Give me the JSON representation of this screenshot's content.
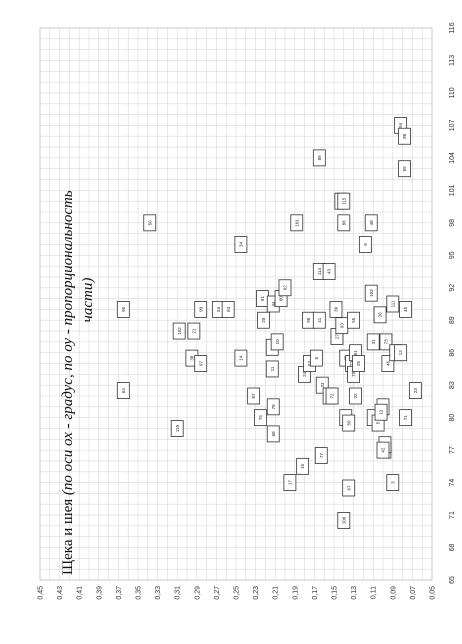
{
  "chart_data": {
    "type": "scatter",
    "title": "Щека и шея",
    "title_italic": "(по оси ох - градус, по оу - пропорциональность части)",
    "x_axis": {
      "range": [
        65,
        116
      ],
      "ticks": [
        65,
        68,
        71,
        74,
        77,
        80,
        83,
        86,
        89,
        92,
        95,
        98,
        101,
        104,
        107,
        110,
        113,
        116
      ]
    },
    "y_axis": {
      "range": [
        0.05,
        0.45
      ],
      "ticks": [
        "0,45",
        "0,43",
        "0,41",
        "0,39",
        "0,37",
        "0,35",
        "0,33",
        "0,31",
        "0,29",
        "0,27",
        "0,25",
        "0,23",
        "0,21",
        "0,19",
        "0,17",
        "0,15",
        "0,13",
        "0,11",
        "0,09",
        "0,07",
        "0,05"
      ],
      "tick_values": [
        0.45,
        0.43,
        0.41,
        0.39,
        0.37,
        0.35,
        0.33,
        0.31,
        0.29,
        0.27,
        0.25,
        0.23,
        0.21,
        0.19,
        0.17,
        0.15,
        0.13,
        0.11,
        0.09,
        0.07,
        0.05
      ]
    },
    "grid": true,
    "orientation": "rotated-90-clockwise",
    "points": [
      {
        "label": "64",
        "x": 82.5,
        "y": 0.365
      },
      {
        "label": "95",
        "x": 90.0,
        "y": 0.365
      },
      {
        "label": "56",
        "x": 98.0,
        "y": 0.338
      },
      {
        "label": "110",
        "x": 79.0,
        "y": 0.31
      },
      {
        "label": "102",
        "x": 88.0,
        "y": 0.308
      },
      {
        "label": "38",
        "x": 85.5,
        "y": 0.295
      },
      {
        "label": "21",
        "x": 88.0,
        "y": 0.293
      },
      {
        "label": "97",
        "x": 85.0,
        "y": 0.286
      },
      {
        "label": "90",
        "x": 90.0,
        "y": 0.286
      },
      {
        "label": "54",
        "x": 90.0,
        "y": 0.268
      },
      {
        "label": "84",
        "x": 90.0,
        "y": 0.258
      },
      {
        "label": "34",
        "x": 96.0,
        "y": 0.245
      },
      {
        "label": "14",
        "x": 85.5,
        "y": 0.245
      },
      {
        "label": "87",
        "x": 82.0,
        "y": 0.232
      },
      {
        "label": "75",
        "x": 80.0,
        "y": 0.225
      },
      {
        "label": "91",
        "x": 91.0,
        "y": 0.223
      },
      {
        "label": "20",
        "x": 89.0,
        "y": 0.222
      },
      {
        "label": "78",
        "x": 81.0,
        "y": 0.212
      },
      {
        "label": "68",
        "x": 78.5,
        "y": 0.212
      },
      {
        "label": "11",
        "x": 84.5,
        "y": 0.213
      },
      {
        "label": "22",
        "x": 86.5,
        "y": 0.213
      },
      {
        "label": "10",
        "x": 87.0,
        "y": 0.208
      },
      {
        "label": "17",
        "x": 74.0,
        "y": 0.195
      },
      {
        "label": "101",
        "x": 98.0,
        "y": 0.188
      },
      {
        "label": "44",
        "x": 90.5,
        "y": 0.212
      },
      {
        "label": "60",
        "x": 91.0,
        "y": 0.204
      },
      {
        "label": "62",
        "x": 92.0,
        "y": 0.2
      },
      {
        "label": "15",
        "x": 75.5,
        "y": 0.182
      },
      {
        "label": "24",
        "x": 84.0,
        "y": 0.18
      },
      {
        "label": "53",
        "x": 85.0,
        "y": 0.175
      },
      {
        "label": "96",
        "x": 89.0,
        "y": 0.176
      },
      {
        "label": "6",
        "x": 85.5,
        "y": 0.168
      },
      {
        "label": "41",
        "x": 89.0,
        "y": 0.165
      },
      {
        "label": "89",
        "x": 104.0,
        "y": 0.165
      },
      {
        "label": "114",
        "x": 93.5,
        "y": 0.165
      },
      {
        "label": "43",
        "x": 93.5,
        "y": 0.155
      },
      {
        "label": "77",
        "x": 76.5,
        "y": 0.163
      },
      {
        "label": "33",
        "x": 83.0,
        "y": 0.162
      },
      {
        "label": "19",
        "x": 82.0,
        "y": 0.155
      },
      {
        "label": "72",
        "x": 82.0,
        "y": 0.152
      },
      {
        "label": "36",
        "x": 90.0,
        "y": 0.148
      },
      {
        "label": "27",
        "x": 87.5,
        "y": 0.147
      },
      {
        "label": "30",
        "x": 100.0,
        "y": 0.143
      },
      {
        "label": "115",
        "x": 100.0,
        "y": 0.14
      },
      {
        "label": "88",
        "x": 98.0,
        "y": 0.14
      },
      {
        "label": "67",
        "x": 73.5,
        "y": 0.135
      },
      {
        "label": "109",
        "x": 70.5,
        "y": 0.14
      },
      {
        "label": "40",
        "x": 80.0,
        "y": 0.138
      },
      {
        "label": "50",
        "x": 79.5,
        "y": 0.135
      },
      {
        "label": "85",
        "x": 85.5,
        "y": 0.138
      },
      {
        "label": "93",
        "x": 88.5,
        "y": 0.142
      },
      {
        "label": "23",
        "x": 85.0,
        "y": 0.132
      },
      {
        "label": "32",
        "x": 82.0,
        "y": 0.128
      },
      {
        "label": "70",
        "x": 84.0,
        "y": 0.13
      },
      {
        "label": "55",
        "x": 89.0,
        "y": 0.13
      },
      {
        "label": "61",
        "x": 86.0,
        "y": 0.128
      },
      {
        "label": "25",
        "x": 85.0,
        "y": 0.125
      },
      {
        "label": "8",
        "x": 96.0,
        "y": 0.118
      },
      {
        "label": "48",
        "x": 98.0,
        "y": 0.112
      },
      {
        "label": "103",
        "x": 91.5,
        "y": 0.112
      },
      {
        "label": "31",
        "x": 87.0,
        "y": 0.11
      },
      {
        "label": "59",
        "x": 80.0,
        "y": 0.11
      },
      {
        "label": "5",
        "x": 79.5,
        "y": 0.105
      },
      {
        "label": "26",
        "x": 89.5,
        "y": 0.103
      },
      {
        "label": "73",
        "x": 87.0,
        "y": 0.097
      },
      {
        "label": "46",
        "x": 85.0,
        "y": 0.095
      },
      {
        "label": "57",
        "x": 81.0,
        "y": 0.1
      },
      {
        "label": "65",
        "x": 77.0,
        "y": 0.098
      },
      {
        "label": "81",
        "x": 77.5,
        "y": 0.098
      },
      {
        "label": "42",
        "x": 77.0,
        "y": 0.1
      },
      {
        "label": "12",
        "x": 80.5,
        "y": 0.102
      },
      {
        "label": "111",
        "x": 90.5,
        "y": 0.09
      },
      {
        "label": "16",
        "x": 86.0,
        "y": 0.087
      },
      {
        "label": "13",
        "x": 86.0,
        "y": 0.082
      },
      {
        "label": "3",
        "x": 74.0,
        "y": 0.09
      },
      {
        "label": "71",
        "x": 80.0,
        "y": 0.077
      },
      {
        "label": "45",
        "x": 90.0,
        "y": 0.077
      },
      {
        "label": "23b",
        "display": "23",
        "x": 82.5,
        "y": 0.067
      },
      {
        "label": "55b",
        "display": "55",
        "x": 103.0,
        "y": 0.078
      },
      {
        "label": "94",
        "x": 107.0,
        "y": 0.082
      },
      {
        "label": "86",
        "x": 106.0,
        "y": 0.078
      }
    ]
  }
}
